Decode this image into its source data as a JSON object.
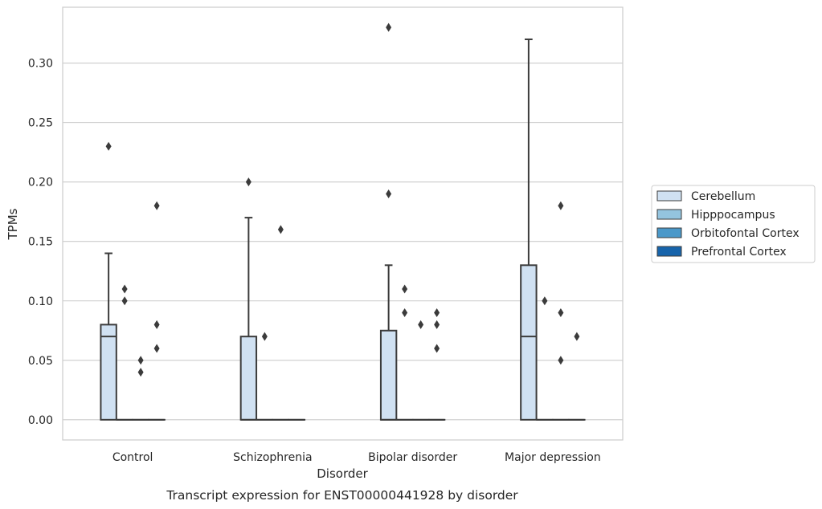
{
  "chart_data": {
    "type": "box",
    "title": "Transcript expression for ENST00000441928 by disorder",
    "xlabel": "Disorder",
    "ylabel": "TPMs",
    "categories": [
      "Control",
      "Schizophrenia",
      "Bipolar disorder",
      "Major depression"
    ],
    "ylim": [
      -0.017,
      0.347
    ],
    "yticks": [
      0.0,
      0.05,
      0.1,
      0.15,
      0.2,
      0.25,
      0.3
    ],
    "ytick_labels": [
      "0.00",
      "0.05",
      "0.10",
      "0.15",
      "0.20",
      "0.25",
      "0.30"
    ],
    "grid": true,
    "legend_position": "right",
    "series": [
      {
        "name": "Cerebellum",
        "color": "#d0e1f2",
        "boxes": [
          {
            "q1": 0.0,
            "median": 0.07,
            "q3": 0.08,
            "whisker_low": 0.0,
            "whisker_high": 0.14,
            "outliers": [
              0.23
            ]
          },
          {
            "q1": 0.0,
            "median": 0.0,
            "q3": 0.07,
            "whisker_low": 0.0,
            "whisker_high": 0.17,
            "outliers": [
              0.2
            ]
          },
          {
            "q1": 0.0,
            "median": 0.0,
            "q3": 0.075,
            "whisker_low": 0.0,
            "whisker_high": 0.13,
            "outliers": [
              0.19,
              0.33
            ]
          },
          {
            "q1": 0.0,
            "median": 0.07,
            "q3": 0.13,
            "whisker_low": 0.0,
            "whisker_high": 0.32,
            "outliers": []
          }
        ]
      },
      {
        "name": "Hipppocampus",
        "color": "#94c4df",
        "boxes": [
          {
            "q1": 0.0,
            "median": 0.0,
            "q3": 0.0,
            "whisker_low": 0.0,
            "whisker_high": 0.0,
            "outliers": [
              0.1,
              0.11
            ]
          },
          {
            "q1": 0.0,
            "median": 0.0,
            "q3": 0.0,
            "whisker_low": 0.0,
            "whisker_high": 0.0,
            "outliers": [
              0.07
            ]
          },
          {
            "q1": 0.0,
            "median": 0.0,
            "q3": 0.0,
            "whisker_low": 0.0,
            "whisker_high": 0.0,
            "outliers": [
              0.09,
              0.11
            ]
          },
          {
            "q1": 0.0,
            "median": 0.0,
            "q3": 0.0,
            "whisker_low": 0.0,
            "whisker_high": 0.0,
            "outliers": [
              0.1
            ]
          }
        ]
      },
      {
        "name": "Orbitofontal Cortex",
        "color": "#4a98c9",
        "boxes": [
          {
            "q1": 0.0,
            "median": 0.0,
            "q3": 0.0,
            "whisker_low": 0.0,
            "whisker_high": 0.0,
            "outliers": [
              0.04,
              0.05
            ]
          },
          {
            "q1": 0.0,
            "median": 0.0,
            "q3": 0.0,
            "whisker_low": 0.0,
            "whisker_high": 0.0,
            "outliers": [
              0.16
            ]
          },
          {
            "q1": 0.0,
            "median": 0.0,
            "q3": 0.0,
            "whisker_low": 0.0,
            "whisker_high": 0.0,
            "outliers": [
              0.08
            ]
          },
          {
            "q1": 0.0,
            "median": 0.0,
            "q3": 0.0,
            "whisker_low": 0.0,
            "whisker_high": 0.0,
            "outliers": [
              0.05,
              0.09,
              0.18
            ]
          }
        ]
      },
      {
        "name": "Prefrontal Cortex",
        "color": "#1764ab",
        "boxes": [
          {
            "q1": 0.0,
            "median": 0.0,
            "q3": 0.0,
            "whisker_low": 0.0,
            "whisker_high": 0.0,
            "outliers": [
              0.06,
              0.08,
              0.18
            ]
          },
          {
            "q1": 0.0,
            "median": 0.0,
            "q3": 0.0,
            "whisker_low": 0.0,
            "whisker_high": 0.0,
            "outliers": []
          },
          {
            "q1": 0.0,
            "median": 0.0,
            "q3": 0.0,
            "whisker_low": 0.0,
            "whisker_high": 0.0,
            "outliers": [
              0.06,
              0.08,
              0.09
            ]
          },
          {
            "q1": 0.0,
            "median": 0.0,
            "q3": 0.0,
            "whisker_low": 0.0,
            "whisker_high": 0.0,
            "outliers": [
              0.07
            ]
          }
        ]
      }
    ]
  }
}
